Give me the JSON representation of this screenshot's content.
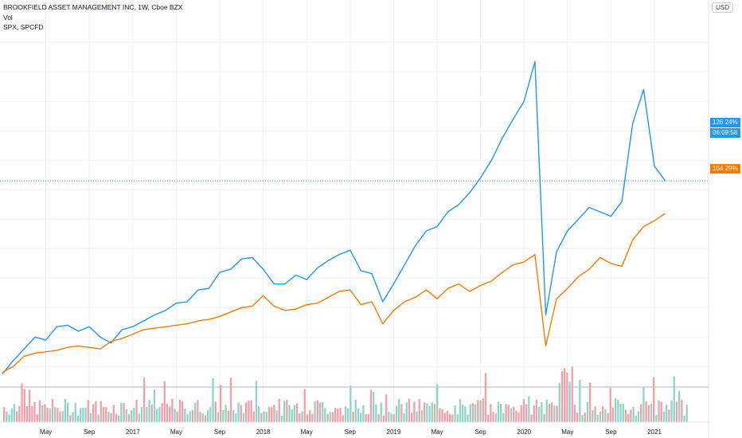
{
  "legend": {
    "main": "BROOKFIELD ASSET MANAGEMENT INC, 1W, Cboe BZX",
    "vol": "Vol",
    "compare": "SPX, SPCFD"
  },
  "currency_button": "USD",
  "colors": {
    "bam_line": "#2196f3",
    "spx_line": "#f57c00",
    "vol_up": "#8fd5c6",
    "vol_down": "#f2a0a8",
    "grid": "#eef0f3",
    "axis_line": "#e0e3eb",
    "text": "#131722"
  },
  "price_tags": {
    "bam_pct": "126.24%",
    "countdown": "06:09:58",
    "spx_pct": "104.29%"
  },
  "chart_data": {
    "type": "line",
    "y_unit": "percent change",
    "y_range": [
      -15,
      225
    ],
    "x_range": [
      "2016-01",
      "2021-02"
    ],
    "x_tick_labels": [
      "May",
      "Sep",
      "2017",
      "May",
      "Sep",
      "2018",
      "May",
      "Sep",
      "2019",
      "May",
      "Sep",
      "2020",
      "May",
      "Sep",
      "2021"
    ],
    "x_tick_months": [
      "2016-05",
      "2016-09",
      "2017-01",
      "2017-05",
      "2017-09",
      "2018-01",
      "2018-05",
      "2018-09",
      "2019-01",
      "2019-05",
      "2019-09",
      "2020-01",
      "2020-05",
      "2020-09",
      "2021-01"
    ],
    "series": [
      {
        "name": "BROOKFIELD ASSET MANAGEMENT INC",
        "points": [
          [
            "2016-01",
            -5
          ],
          [
            "2016-02",
            4
          ],
          [
            "2016-03",
            12
          ],
          [
            "2016-04",
            20
          ],
          [
            "2016-05",
            18
          ],
          [
            "2016-06",
            27
          ],
          [
            "2016-07",
            28
          ],
          [
            "2016-08",
            24
          ],
          [
            "2016-09",
            27
          ],
          [
            "2016-10",
            20
          ],
          [
            "2016-11",
            16
          ],
          [
            "2016-12",
            25
          ],
          [
            "2017-01",
            27
          ],
          [
            "2017-02",
            31
          ],
          [
            "2017-03",
            35
          ],
          [
            "2017-04",
            38
          ],
          [
            "2017-05",
            43
          ],
          [
            "2017-06",
            44
          ],
          [
            "2017-07",
            52
          ],
          [
            "2017-08",
            53
          ],
          [
            "2017-09",
            64
          ],
          [
            "2017-10",
            66
          ],
          [
            "2017-11",
            73
          ],
          [
            "2017-12",
            74
          ],
          [
            "2018-01",
            66
          ],
          [
            "2018-02",
            56
          ],
          [
            "2018-03",
            56
          ],
          [
            "2018-04",
            62
          ],
          [
            "2018-05",
            59
          ],
          [
            "2018-06",
            67
          ],
          [
            "2018-07",
            72
          ],
          [
            "2018-08",
            76
          ],
          [
            "2018-09",
            79
          ],
          [
            "2018-10",
            65
          ],
          [
            "2018-11",
            63
          ],
          [
            "2018-12",
            44
          ],
          [
            "2019-01",
            56
          ],
          [
            "2019-02",
            69
          ],
          [
            "2019-03",
            82
          ],
          [
            "2019-04",
            92
          ],
          [
            "2019-05",
            95
          ],
          [
            "2019-06",
            105
          ],
          [
            "2019-07",
            110
          ],
          [
            "2019-08",
            118
          ],
          [
            "2019-09",
            128
          ],
          [
            "2019-10",
            140
          ],
          [
            "2019-11",
            155
          ],
          [
            "2019-12",
            168
          ],
          [
            "2020-01",
            180
          ],
          [
            "2020-02",
            207
          ],
          [
            "2020-03",
            35
          ],
          [
            "2020-04",
            78
          ],
          [
            "2020-05",
            92
          ],
          [
            "2020-06",
            100
          ],
          [
            "2020-07",
            108
          ],
          [
            "2020-08",
            105
          ],
          [
            "2020-09",
            102
          ],
          [
            "2020-10",
            112
          ],
          [
            "2020-11",
            165
          ],
          [
            "2020-12",
            188
          ],
          [
            "2021-01",
            136
          ],
          [
            "2021-02",
            126
          ]
        ]
      },
      {
        "name": "SPX",
        "points": [
          [
            "2016-01",
            -4
          ],
          [
            "2016-02",
            0
          ],
          [
            "2016-03",
            7
          ],
          [
            "2016-04",
            9
          ],
          [
            "2016-05",
            10
          ],
          [
            "2016-06",
            11
          ],
          [
            "2016-07",
            13
          ],
          [
            "2016-08",
            14
          ],
          [
            "2016-09",
            13
          ],
          [
            "2016-10",
            12
          ],
          [
            "2016-11",
            17
          ],
          [
            "2016-12",
            19
          ],
          [
            "2017-01",
            22
          ],
          [
            "2017-02",
            25
          ],
          [
            "2017-03",
            26
          ],
          [
            "2017-04",
            27
          ],
          [
            "2017-05",
            28
          ],
          [
            "2017-06",
            29
          ],
          [
            "2017-07",
            31
          ],
          [
            "2017-08",
            32
          ],
          [
            "2017-09",
            34
          ],
          [
            "2017-10",
            37
          ],
          [
            "2017-11",
            40
          ],
          [
            "2017-12",
            41
          ],
          [
            "2018-01",
            48
          ],
          [
            "2018-02",
            41
          ],
          [
            "2018-03",
            38
          ],
          [
            "2018-04",
            39
          ],
          [
            "2018-05",
            42
          ],
          [
            "2018-06",
            43
          ],
          [
            "2018-07",
            47
          ],
          [
            "2018-08",
            51
          ],
          [
            "2018-09",
            52
          ],
          [
            "2018-10",
            42
          ],
          [
            "2018-11",
            44
          ],
          [
            "2018-12",
            29
          ],
          [
            "2019-01",
            38
          ],
          [
            "2019-02",
            44
          ],
          [
            "2019-03",
            47
          ],
          [
            "2019-04",
            52
          ],
          [
            "2019-05",
            46
          ],
          [
            "2019-06",
            53
          ],
          [
            "2019-07",
            56
          ],
          [
            "2019-08",
            51
          ],
          [
            "2019-09",
            55
          ],
          [
            "2019-10",
            58
          ],
          [
            "2019-11",
            64
          ],
          [
            "2019-12",
            69
          ],
          [
            "2020-01",
            71
          ],
          [
            "2020-02",
            76
          ],
          [
            "2020-03",
            14
          ],
          [
            "2020-04",
            46
          ],
          [
            "2020-05",
            53
          ],
          [
            "2020-06",
            61
          ],
          [
            "2020-07",
            66
          ],
          [
            "2020-08",
            74
          ],
          [
            "2020-09",
            70
          ],
          [
            "2020-10",
            68
          ],
          [
            "2020-11",
            86
          ],
          [
            "2020-12",
            95
          ],
          [
            "2021-01",
            99
          ],
          [
            "2021-02",
            104
          ]
        ]
      }
    ]
  }
}
